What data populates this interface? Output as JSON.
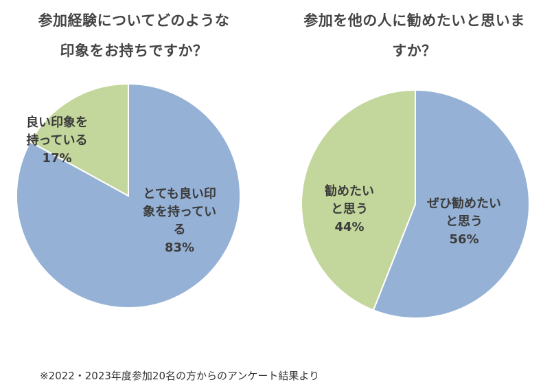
{
  "chart_data": [
    {
      "type": "pie",
      "title": [
        "参加経験についてどのような",
        "印象をお持ちですか？"
      ],
      "slices": [
        {
          "label": [
            "とても良い印",
            "象を持ってい",
            "る"
          ],
          "value": 83,
          "display": "83%",
          "color": "#95b1d5"
        },
        {
          "label": [
            "良い印象を",
            "持っている"
          ],
          "value": 17,
          "display": "17%",
          "color": "#c3d69b"
        }
      ]
    },
    {
      "type": "pie",
      "title": [
        "参加を他の人に勧めたいと思いま",
        "すか？"
      ],
      "slices": [
        {
          "label": [
            "ぜひ勧めたい",
            "と思う"
          ],
          "value": 56,
          "display": "56%",
          "color": "#95b1d5"
        },
        {
          "label": [
            "勧めたい",
            "と思う"
          ],
          "value": 44,
          "display": "44%",
          "color": "#c3d69b"
        }
      ]
    }
  ],
  "footnote": "※2022・2023年度参加20名の方からのアンケート結果より"
}
